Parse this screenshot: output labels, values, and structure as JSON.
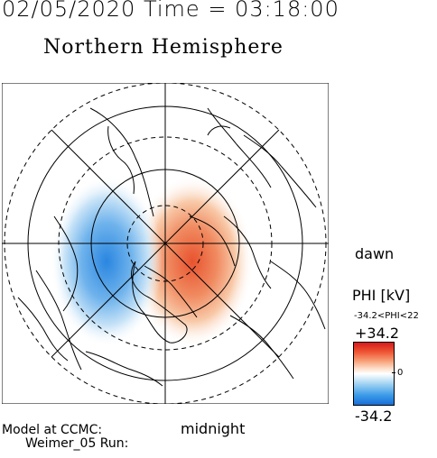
{
  "header": {
    "datetime": "02/05/2020 Time = 03:18:00"
  },
  "plot": {
    "title": "Northern Hemisphere"
  },
  "labels": {
    "dawn": "dawn",
    "midnight": "midnight"
  },
  "model": {
    "line1": "Model at CCMC:",
    "line2": "Weimer_05 Run:"
  },
  "colorbar": {
    "title": "PHI [kV]",
    "range_text": "-34.2<PHI<22",
    "max_label": "+34.2",
    "zero_label": "0",
    "min_label": "-34.2",
    "colors": {
      "max": "#d7191c",
      "zero": "#ffffff",
      "min": "#1a6fd8"
    }
  },
  "map": {
    "projection": "polar",
    "grid": "on",
    "potential_cells": [
      {
        "sign": "positive",
        "color": "#e8532f"
      },
      {
        "sign": "negative",
        "color": "#2a86e0"
      }
    ]
  }
}
